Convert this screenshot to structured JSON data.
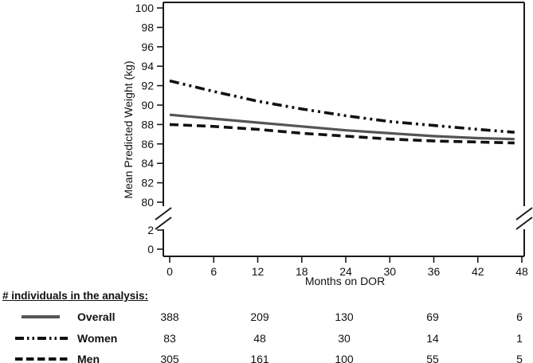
{
  "chart_data": {
    "type": "line",
    "title": "",
    "ylabel": "Mean Predicted Weight (kg)",
    "xlabel": "Months on DOR",
    "y_axis": {
      "upper_ticks": [
        100,
        98,
        96,
        94,
        92,
        90,
        88,
        86,
        84,
        82,
        80
      ],
      "lower_ticks": [
        2,
        0
      ],
      "axis_break": true,
      "upper_range": [
        80,
        100
      ]
    },
    "x_axis": {
      "ticks": [
        0,
        6,
        12,
        18,
        24,
        30,
        36,
        42,
        48
      ],
      "range": [
        0,
        48
      ]
    },
    "grid": false,
    "legend_position": "bottom-table",
    "series": [
      {
        "name": "Women",
        "style": "dash-dot-dot",
        "color": "#111111",
        "x": [
          0,
          6,
          12,
          18,
          24,
          30,
          36,
          42,
          47
        ],
        "y": [
          92.5,
          91.4,
          90.4,
          89.6,
          88.9,
          88.3,
          87.9,
          87.5,
          87.2
        ]
      },
      {
        "name": "Overall",
        "style": "solid",
        "color": "#555555",
        "x": [
          0,
          6,
          12,
          18,
          24,
          30,
          36,
          42,
          47
        ],
        "y": [
          89.0,
          88.6,
          88.2,
          87.8,
          87.4,
          87.1,
          86.8,
          86.6,
          86.5
        ]
      },
      {
        "name": "Men",
        "style": "dashed",
        "color": "#111111",
        "x": [
          0,
          6,
          12,
          18,
          24,
          30,
          36,
          42,
          47
        ],
        "y": [
          88.0,
          87.8,
          87.5,
          87.1,
          86.8,
          86.5,
          86.3,
          86.2,
          86.1
        ]
      }
    ]
  },
  "axis_titles": {
    "y": "Mean Predicted Weight (kg)",
    "x": "Months on DOR"
  },
  "counts": {
    "heading": "# individuals in the analysis:",
    "columns_months": [
      0,
      12,
      24,
      36,
      48
    ],
    "rows": [
      {
        "label": "Overall",
        "values": [
          "388",
          "209",
          "130",
          "69",
          "6"
        ]
      },
      {
        "label": "Women",
        "values": [
          "83",
          "48",
          "30",
          "14",
          "1"
        ]
      },
      {
        "label": "Men",
        "values": [
          "305",
          "161",
          "100",
          "55",
          "5"
        ]
      }
    ]
  },
  "colors": {
    "overall_line": "#555555",
    "black_line": "#111111",
    "axis": "#1a1a1a"
  }
}
